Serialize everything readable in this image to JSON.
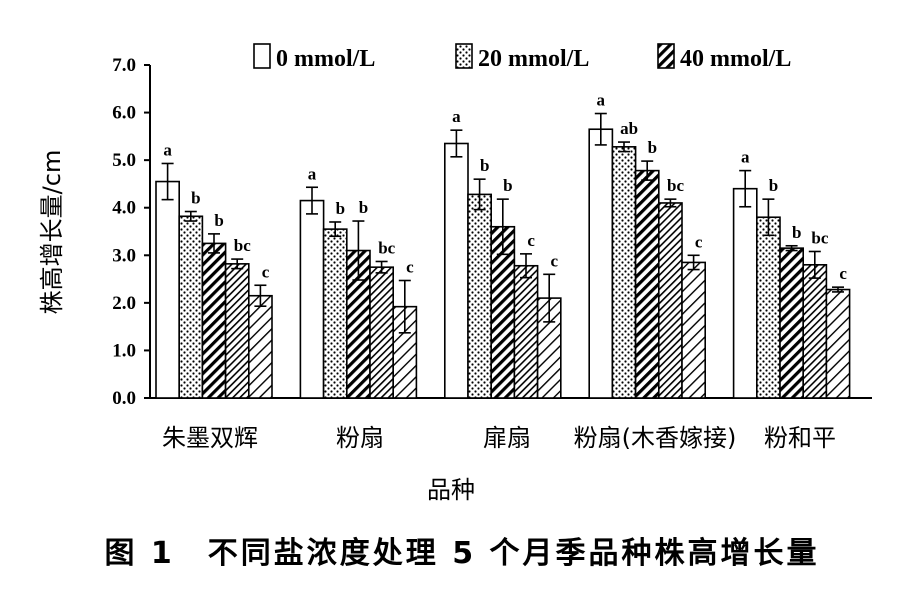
{
  "caption": "图 1　不同盐浓度处理 5 个月季品种株高增长量",
  "chart_data": {
    "type": "bar",
    "title": "",
    "xlabel": "品种",
    "ylabel": "株高增长量/cm",
    "ylim": [
      0,
      7
    ],
    "yticks": [
      "0.0",
      "1.0",
      "2.0",
      "3.0",
      "4.0",
      "5.0",
      "6.0",
      "7.0"
    ],
    "categories": [
      "朱墨双辉",
      "粉扇",
      "扉扇",
      "粉扇(木香嫁接)",
      "粉和平"
    ],
    "legend_position": "top",
    "series": [
      {
        "name": "0 mmol/L",
        "pattern": "open",
        "values": [
          4.55,
          4.15,
          5.35,
          5.65,
          4.4
        ],
        "errors": [
          0.38,
          0.28,
          0.28,
          0.33,
          0.38
        ],
        "labels": [
          "a",
          "a",
          "a",
          "a",
          "a"
        ]
      },
      {
        "name": "20 mmol/L",
        "pattern": "dots",
        "values": [
          3.82,
          3.55,
          4.28,
          5.28,
          3.8
        ],
        "errors": [
          0.1,
          0.15,
          0.32,
          0.1,
          0.38
        ],
        "labels": [
          "b",
          "b",
          "b",
          "ab",
          "b"
        ]
      },
      {
        "name": "40 mmol/L",
        "pattern": "hatch",
        "values": [
          3.25,
          3.1,
          3.6,
          4.78,
          3.15
        ],
        "errors": [
          0.2,
          0.62,
          0.58,
          0.2,
          0.05
        ],
        "labels": [
          "b",
          "b",
          "b",
          "b",
          "b"
        ]
      },
      {
        "name": "",
        "pattern": "hatch-dense",
        "values": [
          2.82,
          2.75,
          2.78,
          4.1,
          2.8
        ],
        "errors": [
          0.1,
          0.12,
          0.25,
          0.08,
          0.28
        ],
        "labels": [
          "bc",
          "bc",
          "c",
          "bc",
          "bc"
        ]
      },
      {
        "name": "",
        "pattern": "hatch-light",
        "values": [
          2.15,
          1.92,
          2.1,
          2.85,
          2.28
        ],
        "errors": [
          0.22,
          0.55,
          0.5,
          0.15,
          0.05
        ],
        "labels": [
          "c",
          "c",
          "c",
          "c",
          "c"
        ]
      }
    ],
    "colors": {
      "axis": "#000000",
      "bar_edge": "#000000",
      "fill": "#ffffff"
    }
  }
}
